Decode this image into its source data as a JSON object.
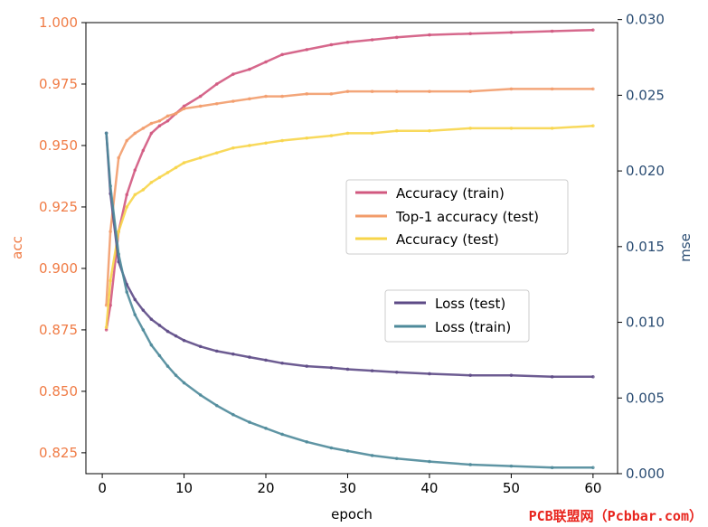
{
  "watermark": "PCB联盟网（Pcbbar.com）",
  "chart_data": {
    "type": "line",
    "xlabel": "epoch",
    "ylabel_left": "acc",
    "ylabel_right": "mse",
    "xlim": [
      -2,
      63
    ],
    "ylim_left": [
      0.8165,
      1.0
    ],
    "ylim_right": [
      0.0,
      0.0298
    ],
    "x_ticks": [
      "0",
      "10",
      "20",
      "30",
      "40",
      "50",
      "60"
    ],
    "x_tick_values": [
      0,
      10,
      20,
      30,
      40,
      50,
      60
    ],
    "y_left_ticks": [
      "0.825",
      "0.850",
      "0.875",
      "0.900",
      "0.925",
      "0.950",
      "0.975",
      "1.000"
    ],
    "y_left_tick_values": [
      0.825,
      0.85,
      0.875,
      0.9,
      0.925,
      0.95,
      0.975,
      1.0
    ],
    "y_right_ticks": [
      "0.000",
      "0.005",
      "0.010",
      "0.015",
      "0.020",
      "0.025",
      "0.030"
    ],
    "y_right_tick_values": [
      0.0,
      0.005,
      0.01,
      0.015,
      0.02,
      0.025,
      0.03
    ],
    "colors": {
      "left_axis": "#f07c46",
      "right_axis": "#2b4d73"
    },
    "legend_upper": {
      "placement": "center-right",
      "entries": [
        "Accuracy (train)",
        "Top-1 accuracy (test)",
        "Accuracy (test)"
      ]
    },
    "legend_lower": {
      "placement": "center-right",
      "entries": [
        "Loss (test)",
        "Loss (train)"
      ]
    },
    "series": [
      {
        "name": "Accuracy (train)",
        "axis": "left",
        "color": "#d1587f",
        "x": [
          0.5,
          1,
          2,
          3,
          4,
          5,
          6,
          7,
          8,
          9,
          10,
          12,
          14,
          16,
          18,
          20,
          22,
          25,
          28,
          30,
          33,
          36,
          40,
          45,
          50,
          55,
          60
        ],
        "y": [
          0.875,
          0.885,
          0.915,
          0.93,
          0.94,
          0.948,
          0.955,
          0.958,
          0.96,
          0.963,
          0.966,
          0.97,
          0.975,
          0.979,
          0.981,
          0.984,
          0.987,
          0.989,
          0.991,
          0.992,
          0.993,
          0.994,
          0.995,
          0.9955,
          0.996,
          0.9965,
          0.997
        ]
      },
      {
        "name": "Top-1 accuracy (test)",
        "axis": "left",
        "color": "#f29c6b",
        "x": [
          0.5,
          1,
          2,
          3,
          4,
          5,
          6,
          7,
          8,
          9,
          10,
          12,
          14,
          16,
          18,
          20,
          22,
          25,
          28,
          30,
          33,
          36,
          40,
          45,
          50,
          55,
          60
        ],
        "y": [
          0.885,
          0.915,
          0.945,
          0.952,
          0.955,
          0.957,
          0.959,
          0.96,
          0.962,
          0.963,
          0.965,
          0.966,
          0.967,
          0.968,
          0.969,
          0.97,
          0.97,
          0.971,
          0.971,
          0.972,
          0.972,
          0.972,
          0.972,
          0.972,
          0.973,
          0.973,
          0.973
        ]
      },
      {
        "name": "Accuracy (test)",
        "axis": "left",
        "color": "#f7d54a",
        "x": [
          0.5,
          1,
          2,
          3,
          4,
          5,
          6,
          7,
          8,
          9,
          10,
          12,
          14,
          16,
          18,
          20,
          22,
          25,
          28,
          30,
          33,
          36,
          40,
          45,
          50,
          55,
          60
        ],
        "y": [
          0.876,
          0.895,
          0.915,
          0.925,
          0.93,
          0.932,
          0.935,
          0.937,
          0.939,
          0.941,
          0.943,
          0.945,
          0.947,
          0.949,
          0.95,
          0.951,
          0.952,
          0.953,
          0.954,
          0.955,
          0.955,
          0.956,
          0.956,
          0.957,
          0.957,
          0.957,
          0.958
        ]
      },
      {
        "name": "Loss (test)",
        "axis": "right",
        "color": "#5d4a86",
        "x": [
          0.5,
          1,
          2,
          3,
          4,
          5,
          6,
          7,
          8,
          9,
          10,
          12,
          14,
          16,
          18,
          20,
          22,
          25,
          28,
          30,
          33,
          36,
          40,
          45,
          50,
          55,
          60
        ],
        "y": [
          0.0225,
          0.0185,
          0.014,
          0.0125,
          0.0115,
          0.0108,
          0.0102,
          0.0098,
          0.0094,
          0.0091,
          0.0088,
          0.0084,
          0.0081,
          0.0079,
          0.0077,
          0.0075,
          0.0073,
          0.0071,
          0.007,
          0.0069,
          0.0068,
          0.0067,
          0.0066,
          0.0065,
          0.0065,
          0.0064,
          0.0064
        ]
      },
      {
        "name": "Loss (train)",
        "axis": "right",
        "color": "#4e8a9a",
        "x": [
          0.5,
          1,
          2,
          3,
          4,
          5,
          6,
          7,
          8,
          9,
          10,
          12,
          14,
          16,
          18,
          20,
          22,
          25,
          28,
          30,
          33,
          36,
          40,
          45,
          50,
          55,
          60
        ],
        "y": [
          0.0225,
          0.019,
          0.0145,
          0.012,
          0.0105,
          0.0095,
          0.0085,
          0.0078,
          0.0071,
          0.0065,
          0.006,
          0.0052,
          0.0045,
          0.0039,
          0.0034,
          0.003,
          0.0026,
          0.0021,
          0.0017,
          0.0015,
          0.0012,
          0.001,
          0.0008,
          0.0006,
          0.0005,
          0.0004,
          0.0004
        ]
      }
    ]
  }
}
